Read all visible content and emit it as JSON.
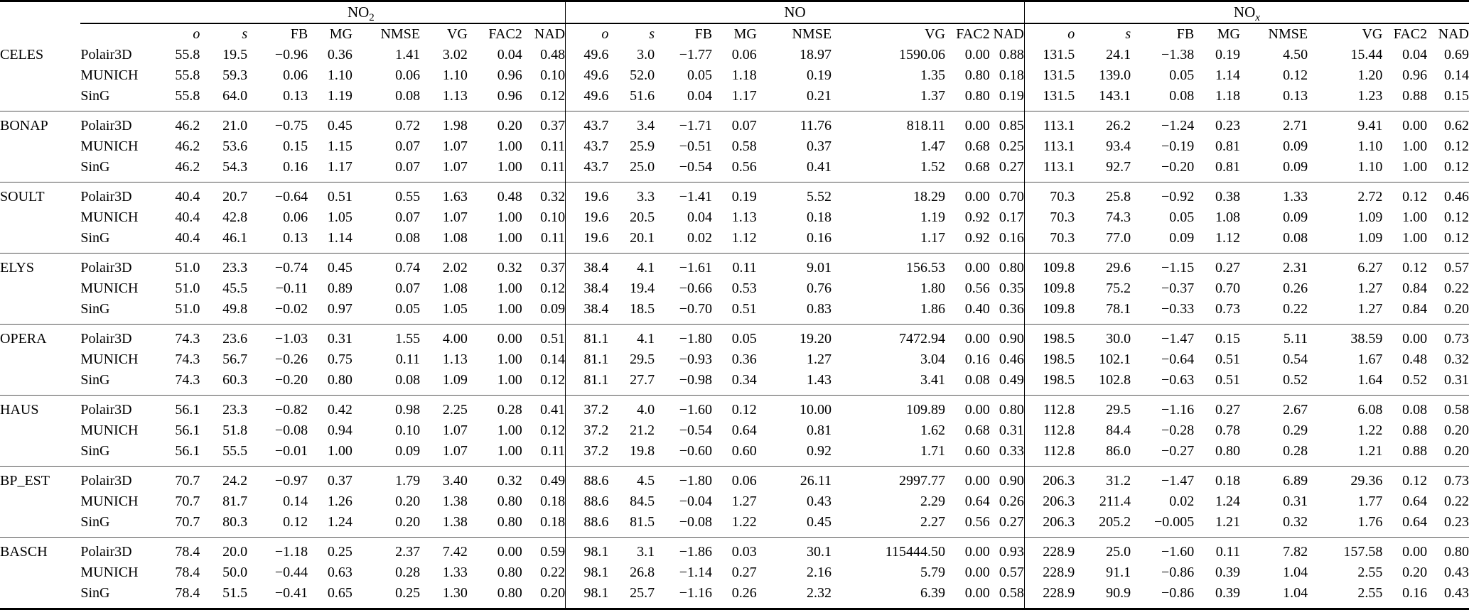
{
  "table": {
    "pollutants": [
      {
        "id": "no2",
        "base": "NO",
        "sub": "2",
        "italic_sub": false
      },
      {
        "id": "no",
        "base": "NO",
        "sub": "",
        "italic_sub": false
      },
      {
        "id": "nox",
        "base": "NO",
        "sub": "x",
        "italic_sub": true
      }
    ],
    "stat_columns": [
      "o",
      "s",
      "FB",
      "MG",
      "NMSE",
      "VG",
      "FAC2",
      "NAD"
    ],
    "italic_stats": [
      "o",
      "s"
    ],
    "stations": [
      {
        "name": "CELES",
        "rows": [
          {
            "model": "Polair3D",
            "no2": [
              "55.8",
              "19.5",
              "−0.96",
              "0.36",
              "1.41",
              "3.02",
              "0.04",
              "0.48"
            ],
            "no": [
              "49.6",
              "3.0",
              "−1.77",
              "0.06",
              "18.97",
              "1590.06",
              "0.00",
              "0.88"
            ],
            "nox": [
              "131.5",
              "24.1",
              "−1.38",
              "0.19",
              "4.50",
              "15.44",
              "0.04",
              "0.69"
            ]
          },
          {
            "model": "MUNICH",
            "no2": [
              "55.8",
              "59.3",
              "0.06",
              "1.10",
              "0.06",
              "1.10",
              "0.96",
              "0.10"
            ],
            "no": [
              "49.6",
              "52.0",
              "0.05",
              "1.18",
              "0.19",
              "1.35",
              "0.80",
              "0.18"
            ],
            "nox": [
              "131.5",
              "139.0",
              "0.05",
              "1.14",
              "0.12",
              "1.20",
              "0.96",
              "0.14"
            ]
          },
          {
            "model": "SinG",
            "no2": [
              "55.8",
              "64.0",
              "0.13",
              "1.19",
              "0.08",
              "1.13",
              "0.96",
              "0.12"
            ],
            "no": [
              "49.6",
              "51.6",
              "0.04",
              "1.17",
              "0.21",
              "1.37",
              "0.80",
              "0.19"
            ],
            "nox": [
              "131.5",
              "143.1",
              "0.08",
              "1.18",
              "0.13",
              "1.23",
              "0.88",
              "0.15"
            ]
          }
        ]
      },
      {
        "name": "BONAP",
        "rows": [
          {
            "model": "Polair3D",
            "no2": [
              "46.2",
              "21.0",
              "−0.75",
              "0.45",
              "0.72",
              "1.98",
              "0.20",
              "0.37"
            ],
            "no": [
              "43.7",
              "3.4",
              "−1.71",
              "0.07",
              "11.76",
              "818.11",
              "0.00",
              "0.85"
            ],
            "nox": [
              "113.1",
              "26.2",
              "−1.24",
              "0.23",
              "2.71",
              "9.41",
              "0.00",
              "0.62"
            ]
          },
          {
            "model": "MUNICH",
            "no2": [
              "46.2",
              "53.6",
              "0.15",
              "1.15",
              "0.07",
              "1.07",
              "1.00",
              "0.11"
            ],
            "no": [
              "43.7",
              "25.9",
              "−0.51",
              "0.58",
              "0.37",
              "1.47",
              "0.68",
              "0.25"
            ],
            "nox": [
              "113.1",
              "93.4",
              "−0.19",
              "0.81",
              "0.09",
              "1.10",
              "1.00",
              "0.12"
            ]
          },
          {
            "model": "SinG",
            "no2": [
              "46.2",
              "54.3",
              "0.16",
              "1.17",
              "0.07",
              "1.07",
              "1.00",
              "0.11"
            ],
            "no": [
              "43.7",
              "25.0",
              "−0.54",
              "0.56",
              "0.41",
              "1.52",
              "0.68",
              "0.27"
            ],
            "nox": [
              "113.1",
              "92.7",
              "−0.20",
              "0.81",
              "0.09",
              "1.10",
              "1.00",
              "0.12"
            ]
          }
        ]
      },
      {
        "name": "SOULT",
        "rows": [
          {
            "model": "Polair3D",
            "no2": [
              "40.4",
              "20.7",
              "−0.64",
              "0.51",
              "0.55",
              "1.63",
              "0.48",
              "0.32"
            ],
            "no": [
              "19.6",
              "3.3",
              "−1.41",
              "0.19",
              "5.52",
              "18.29",
              "0.00",
              "0.70"
            ],
            "nox": [
              "70.3",
              "25.8",
              "−0.92",
              "0.38",
              "1.33",
              "2.72",
              "0.12",
              "0.46"
            ]
          },
          {
            "model": "MUNICH",
            "no2": [
              "40.4",
              "42.8",
              "0.06",
              "1.05",
              "0.07",
              "1.07",
              "1.00",
              "0.10"
            ],
            "no": [
              "19.6",
              "20.5",
              "0.04",
              "1.13",
              "0.18",
              "1.19",
              "0.92",
              "0.17"
            ],
            "nox": [
              "70.3",
              "74.3",
              "0.05",
              "1.08",
              "0.09",
              "1.09",
              "1.00",
              "0.12"
            ]
          },
          {
            "model": "SinG",
            "no2": [
              "40.4",
              "46.1",
              "0.13",
              "1.14",
              "0.08",
              "1.08",
              "1.00",
              "0.11"
            ],
            "no": [
              "19.6",
              "20.1",
              "0.02",
              "1.12",
              "0.16",
              "1.17",
              "0.92",
              "0.16"
            ],
            "nox": [
              "70.3",
              "77.0",
              "0.09",
              "1.12",
              "0.08",
              "1.09",
              "1.00",
              "0.12"
            ]
          }
        ]
      },
      {
        "name": "ELYS",
        "rows": [
          {
            "model": "Polair3D",
            "no2": [
              "51.0",
              "23.3",
              "−0.74",
              "0.45",
              "0.74",
              "2.02",
              "0.32",
              "0.37"
            ],
            "no": [
              "38.4",
              "4.1",
              "−1.61",
              "0.11",
              "9.01",
              "156.53",
              "0.00",
              "0.80"
            ],
            "nox": [
              "109.8",
              "29.6",
              "−1.15",
              "0.27",
              "2.31",
              "6.27",
              "0.12",
              "0.57"
            ]
          },
          {
            "model": "MUNICH",
            "no2": [
              "51.0",
              "45.5",
              "−0.11",
              "0.89",
              "0.07",
              "1.08",
              "1.00",
              "0.12"
            ],
            "no": [
              "38.4",
              "19.4",
              "−0.66",
              "0.53",
              "0.76",
              "1.80",
              "0.56",
              "0.35"
            ],
            "nox": [
              "109.8",
              "75.2",
              "−0.37",
              "0.70",
              "0.26",
              "1.27",
              "0.84",
              "0.22"
            ]
          },
          {
            "model": "SinG",
            "no2": [
              "51.0",
              "49.8",
              "−0.02",
              "0.97",
              "0.05",
              "1.05",
              "1.00",
              "0.09"
            ],
            "no": [
              "38.4",
              "18.5",
              "−0.70",
              "0.51",
              "0.83",
              "1.86",
              "0.40",
              "0.36"
            ],
            "nox": [
              "109.8",
              "78.1",
              "−0.33",
              "0.73",
              "0.22",
              "1.27",
              "0.84",
              "0.20"
            ]
          }
        ]
      },
      {
        "name": "OPERA",
        "rows": [
          {
            "model": "Polair3D",
            "no2": [
              "74.3",
              "23.6",
              "−1.03",
              "0.31",
              "1.55",
              "4.00",
              "0.00",
              "0.51"
            ],
            "no": [
              "81.1",
              "4.1",
              "−1.80",
              "0.05",
              "19.20",
              "7472.94",
              "0.00",
              "0.90"
            ],
            "nox": [
              "198.5",
              "30.0",
              "−1.47",
              "0.15",
              "5.11",
              "38.59",
              "0.00",
              "0.73"
            ]
          },
          {
            "model": "MUNICH",
            "no2": [
              "74.3",
              "56.7",
              "−0.26",
              "0.75",
              "0.11",
              "1.13",
              "1.00",
              "0.14"
            ],
            "no": [
              "81.1",
              "29.5",
              "−0.93",
              "0.36",
              "1.27",
              "3.04",
              "0.16",
              "0.46"
            ],
            "nox": [
              "198.5",
              "102.1",
              "−0.64",
              "0.51",
              "0.54",
              "1.67",
              "0.48",
              "0.32"
            ]
          },
          {
            "model": "SinG",
            "no2": [
              "74.3",
              "60.3",
              "−0.20",
              "0.80",
              "0.08",
              "1.09",
              "1.00",
              "0.12"
            ],
            "no": [
              "81.1",
              "27.7",
              "−0.98",
              "0.34",
              "1.43",
              "3.41",
              "0.08",
              "0.49"
            ],
            "nox": [
              "198.5",
              "102.8",
              "−0.63",
              "0.51",
              "0.52",
              "1.64",
              "0.52",
              "0.31"
            ]
          }
        ]
      },
      {
        "name": "HAUS",
        "rows": [
          {
            "model": "Polair3D",
            "no2": [
              "56.1",
              "23.3",
              "−0.82",
              "0.42",
              "0.98",
              "2.25",
              "0.28",
              "0.41"
            ],
            "no": [
              "37.2",
              "4.0",
              "−1.60",
              "0.12",
              "10.00",
              "109.89",
              "0.00",
              "0.80"
            ],
            "nox": [
              "112.8",
              "29.5",
              "−1.16",
              "0.27",
              "2.67",
              "6.08",
              "0.08",
              "0.58"
            ]
          },
          {
            "model": "MUNICH",
            "no2": [
              "56.1",
              "51.8",
              "−0.08",
              "0.94",
              "0.10",
              "1.07",
              "1.00",
              "0.12"
            ],
            "no": [
              "37.2",
              "21.2",
              "−0.54",
              "0.64",
              "0.81",
              "1.62",
              "0.68",
              "0.31"
            ],
            "nox": [
              "112.8",
              "84.4",
              "−0.28",
              "0.78",
              "0.29",
              "1.22",
              "0.88",
              "0.20"
            ]
          },
          {
            "model": "SinG",
            "no2": [
              "56.1",
              "55.5",
              "−0.01",
              "1.00",
              "0.09",
              "1.07",
              "1.00",
              "0.11"
            ],
            "no": [
              "37.2",
              "19.8",
              "−0.60",
              "0.60",
              "0.92",
              "1.71",
              "0.60",
              "0.33"
            ],
            "nox": [
              "112.8",
              "86.0",
              "−0.27",
              "0.80",
              "0.28",
              "1.21",
              "0.88",
              "0.20"
            ]
          }
        ]
      },
      {
        "name": "BP_EST",
        "rows": [
          {
            "model": "Polair3D",
            "no2": [
              "70.7",
              "24.2",
              "−0.97",
              "0.37",
              "1.79",
              "3.40",
              "0.32",
              "0.49"
            ],
            "no": [
              "88.6",
              "4.5",
              "−1.80",
              "0.06",
              "26.11",
              "2997.77",
              "0.00",
              "0.90"
            ],
            "nox": [
              "206.3",
              "31.2",
              "−1.47",
              "0.18",
              "6.89",
              "29.36",
              "0.12",
              "0.73"
            ]
          },
          {
            "model": "MUNICH",
            "no2": [
              "70.7",
              "81.7",
              "0.14",
              "1.26",
              "0.20",
              "1.38",
              "0.80",
              "0.18"
            ],
            "no": [
              "88.6",
              "84.5",
              "−0.04",
              "1.27",
              "0.43",
              "2.29",
              "0.64",
              "0.26"
            ],
            "nox": [
              "206.3",
              "211.4",
              "0.02",
              "1.24",
              "0.31",
              "1.77",
              "0.64",
              "0.22"
            ]
          },
          {
            "model": "SinG",
            "no2": [
              "70.7",
              "80.3",
              "0.12",
              "1.24",
              "0.20",
              "1.38",
              "0.80",
              "0.18"
            ],
            "no": [
              "88.6",
              "81.5",
              "−0.08",
              "1.22",
              "0.45",
              "2.27",
              "0.56",
              "0.27"
            ],
            "nox": [
              "206.3",
              "205.2",
              "−0.005",
              "1.21",
              "0.32",
              "1.76",
              "0.64",
              "0.23"
            ]
          }
        ]
      },
      {
        "name": "BASCH",
        "rows": [
          {
            "model": "Polair3D",
            "no2": [
              "78.4",
              "20.0",
              "−1.18",
              "0.25",
              "2.37",
              "7.42",
              "0.00",
              "0.59"
            ],
            "no": [
              "98.1",
              "3.1",
              "−1.86",
              "0.03",
              "30.1",
              "115444.50",
              "0.00",
              "0.93"
            ],
            "nox": [
              "228.9",
              "25.0",
              "−1.60",
              "0.11",
              "7.82",
              "157.58",
              "0.00",
              "0.80"
            ]
          },
          {
            "model": "MUNICH",
            "no2": [
              "78.4",
              "50.0",
              "−0.44",
              "0.63",
              "0.28",
              "1.33",
              "0.80",
              "0.22"
            ],
            "no": [
              "98.1",
              "26.8",
              "−1.14",
              "0.27",
              "2.16",
              "5.79",
              "0.00",
              "0.57"
            ],
            "nox": [
              "228.9",
              "91.1",
              "−0.86",
              "0.39",
              "1.04",
              "2.55",
              "0.20",
              "0.43"
            ]
          },
          {
            "model": "SinG",
            "no2": [
              "78.4",
              "51.5",
              "−0.41",
              "0.65",
              "0.25",
              "1.30",
              "0.80",
              "0.20"
            ],
            "no": [
              "98.1",
              "25.7",
              "−1.16",
              "0.26",
              "2.32",
              "6.39",
              "0.00",
              "0.58"
            ],
            "nox": [
              "228.9",
              "90.9",
              "−0.86",
              "0.39",
              "1.04",
              "2.55",
              "0.16",
              "0.43"
            ]
          }
        ]
      }
    ]
  }
}
